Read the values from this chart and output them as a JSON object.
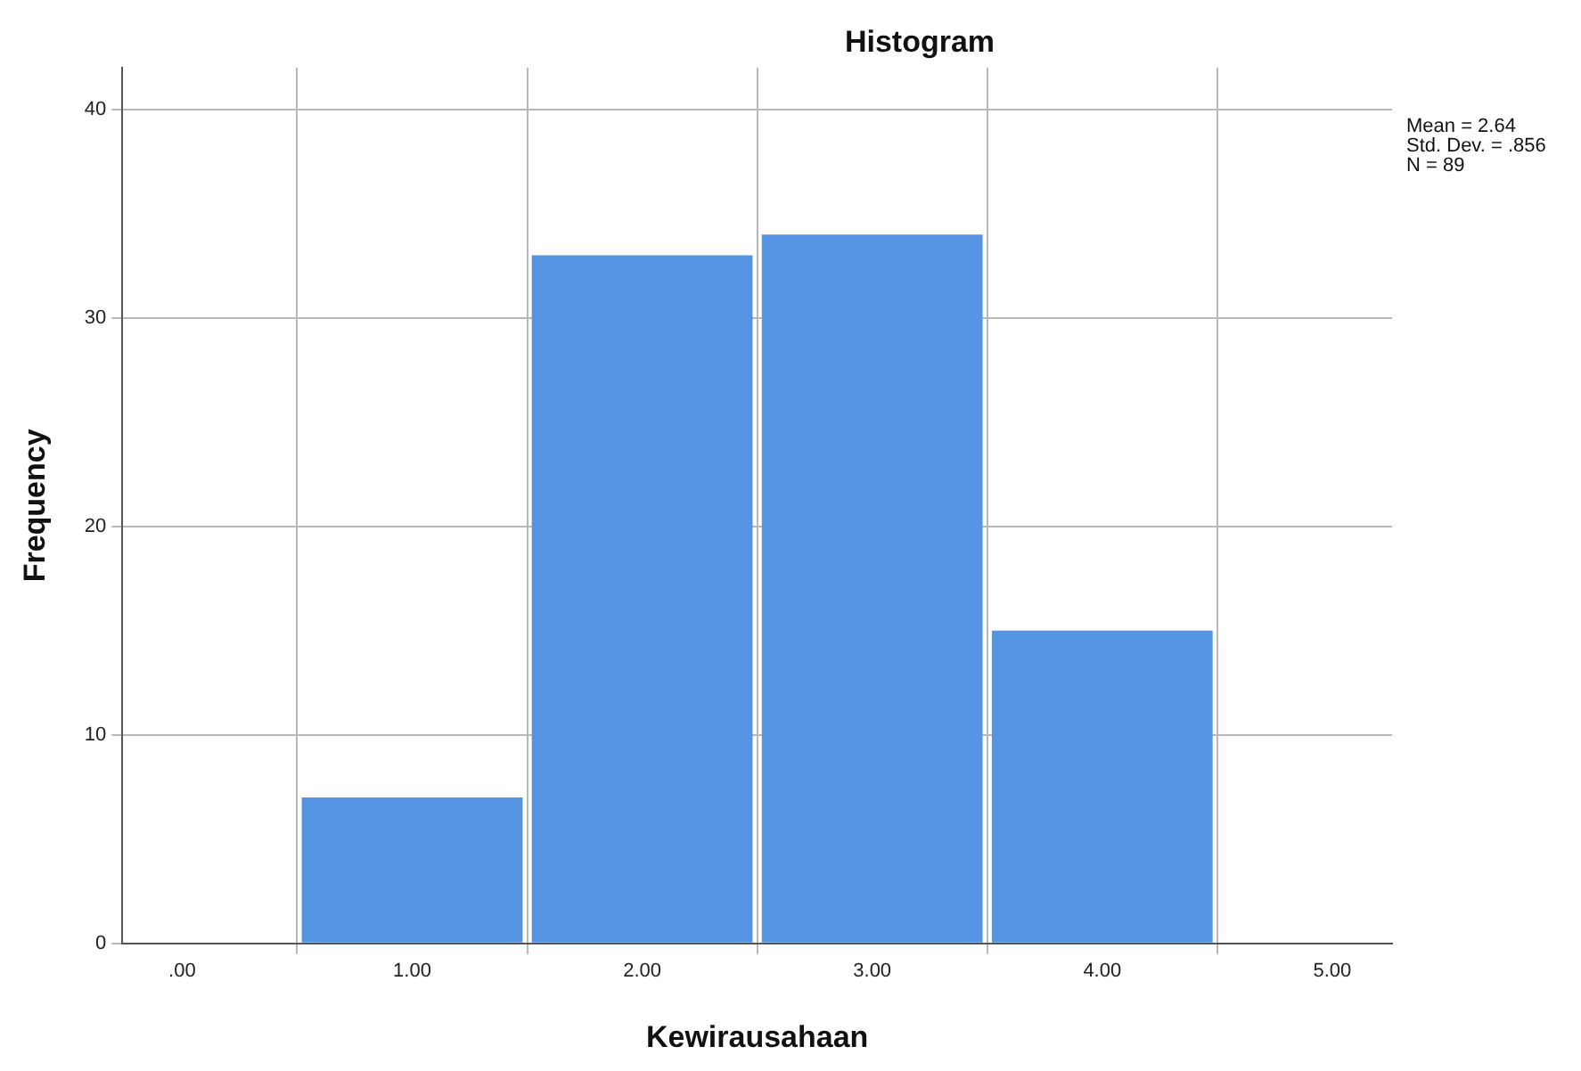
{
  "chart_data": {
    "type": "histogram",
    "title": "Histogram",
    "xlabel": "Kewirausahaan",
    "ylabel": "Frequency",
    "bins": [
      0.5,
      1.5,
      2.5,
      3.5,
      4.5
    ],
    "values": [
      7,
      33,
      34,
      15
    ],
    "color": "#5594e2",
    "xlim": [
      -0.26,
      5.26
    ],
    "xticks": [
      {
        "value": 0,
        "label": ".00"
      },
      {
        "value": 1,
        "label": "1.00"
      },
      {
        "value": 2,
        "label": "2.00"
      },
      {
        "value": 3,
        "label": "3.00"
      },
      {
        "value": 4,
        "label": "4.00"
      },
      {
        "value": 5,
        "label": "5.00"
      }
    ],
    "ylim": [
      0,
      42
    ],
    "yticks": [
      0,
      10,
      20,
      30,
      40
    ],
    "grid": true,
    "legend": false,
    "annotations": [
      "Mean = 2.64",
      "Std. Dev. = .856",
      "N = 89"
    ]
  }
}
